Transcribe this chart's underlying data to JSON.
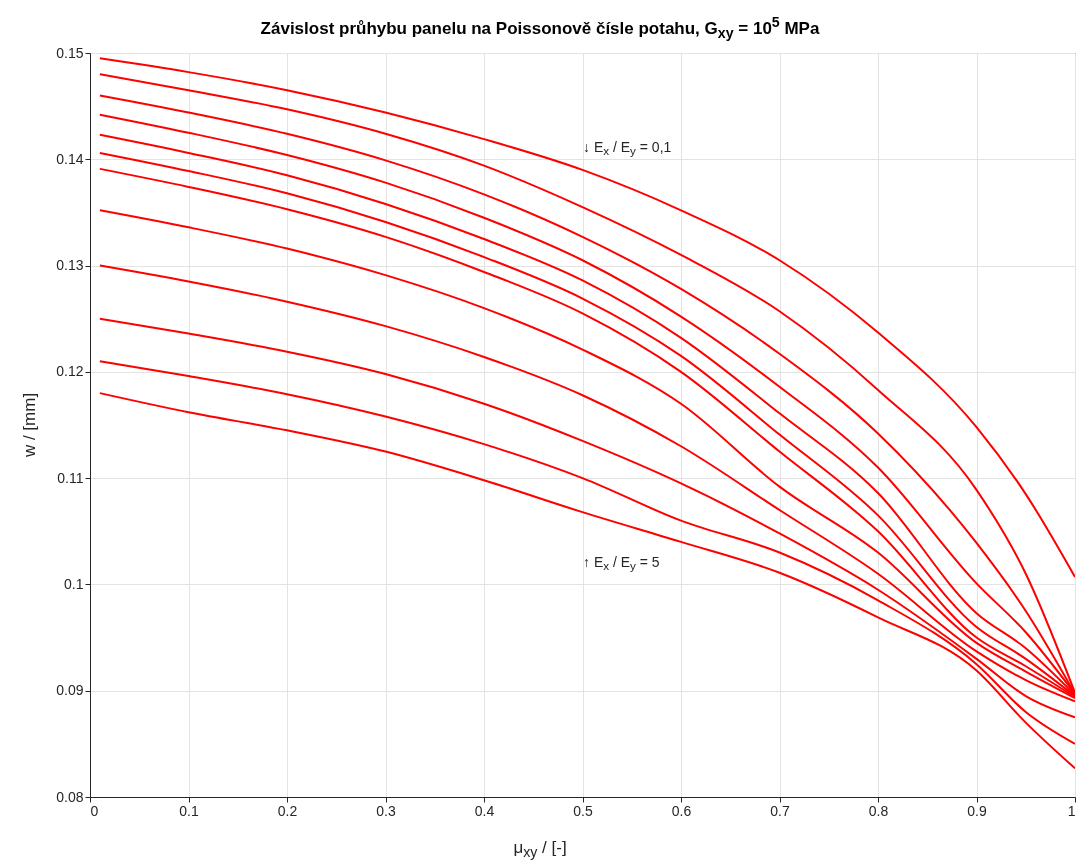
{
  "chart_data": {
    "type": "line",
    "title": "Závislost průhybu panelu na Poissonově čísle potahu, G$_{xy}$ = 10$^{5}$ MPa",
    "xlabel": "μ$_{xy}$ / [-]",
    "ylabel": "w / [mm]",
    "x": [
      0.01,
      0.1,
      0.2,
      0.3,
      0.4,
      0.5,
      0.6,
      0.7,
      0.8,
      0.9,
      0.95,
      1.0
    ],
    "xlim": [
      0,
      1
    ],
    "ylim": [
      0.08,
      0.15
    ],
    "xticks": [
      0,
      0.1,
      0.2,
      0.3,
      0.4,
      0.5,
      0.6,
      0.7,
      0.8,
      0.9,
      1
    ],
    "yticks": [
      0.08,
      0.09,
      0.1,
      0.11,
      0.12,
      0.13,
      0.14,
      0.15
    ],
    "grid": true,
    "annotations": [
      "↓ E$_{x}$ / E$_{y}$ = 0,1",
      "↑ E$_{x}$ / E$_{y}$ = 5"
    ],
    "series": [
      {
        "color": "#ff0000",
        "values": [
          0.1495,
          0.1482,
          0.1465,
          0.1444,
          0.1419,
          0.139,
          0.1352,
          0.1305,
          0.1237,
          0.1148,
          0.1085,
          0.1007
        ]
      },
      {
        "color": "#ff0000",
        "values": [
          0.148,
          0.1465,
          0.1447,
          0.1424,
          0.1394,
          0.1355,
          0.131,
          0.1257,
          0.1183,
          0.1089,
          0.101,
          0.0898
        ]
      },
      {
        "color": "#ff0000",
        "values": [
          0.146,
          0.1444,
          0.1424,
          0.1399,
          0.1367,
          0.1327,
          0.1278,
          0.1217,
          0.1142,
          0.1039,
          0.0975,
          0.0897
        ]
      },
      {
        "color": "#ff0000",
        "values": [
          0.1442,
          0.1425,
          0.1404,
          0.1378,
          0.1345,
          0.1305,
          0.1252,
          0.1186,
          0.111,
          0.1001,
          0.0955,
          0.0897
        ]
      },
      {
        "color": "#ff0000",
        "values": [
          0.1423,
          0.1406,
          0.1385,
          0.1358,
          0.1325,
          0.1286,
          0.1232,
          0.1161,
          0.1086,
          0.0973,
          0.094,
          0.0896
        ]
      },
      {
        "color": "#ff0000",
        "values": [
          0.1406,
          0.1389,
          0.1368,
          0.1341,
          0.1308,
          0.1269,
          0.1215,
          0.1141,
          0.1065,
          0.096,
          0.093,
          0.0895
        ]
      },
      {
        "color": "#ff0000",
        "values": [
          0.1391,
          0.1374,
          0.1353,
          0.1327,
          0.1294,
          0.1255,
          0.12,
          0.1125,
          0.105,
          0.095,
          0.0923,
          0.0894
        ]
      },
      {
        "color": "#ff0000",
        "values": [
          0.1352,
          0.1336,
          0.1316,
          0.1291,
          0.126,
          0.1221,
          0.117,
          0.1092,
          0.103,
          0.0945,
          0.0918,
          0.0893
        ]
      },
      {
        "color": "#ff0000",
        "values": [
          0.13,
          0.1285,
          0.1266,
          0.1243,
          0.1214,
          0.1178,
          0.113,
          0.107,
          0.101,
          0.0937,
          0.091,
          0.089
        ]
      },
      {
        "color": "#ff0000",
        "values": [
          0.125,
          0.1236,
          0.1219,
          0.1198,
          0.117,
          0.1135,
          0.1095,
          0.1048,
          0.0995,
          0.093,
          0.0895,
          0.0875
        ]
      },
      {
        "color": "#ff0000",
        "values": [
          0.121,
          0.1196,
          0.1179,
          0.1158,
          0.1132,
          0.11,
          0.106,
          0.103,
          0.0985,
          0.0925,
          0.088,
          0.085
        ]
      },
      {
        "color": "#ff0000",
        "values": [
          0.118,
          0.1162,
          0.1145,
          0.1125,
          0.1098,
          0.1068,
          0.104,
          0.1011,
          0.0969,
          0.0919,
          0.087,
          0.0827
        ]
      }
    ]
  }
}
